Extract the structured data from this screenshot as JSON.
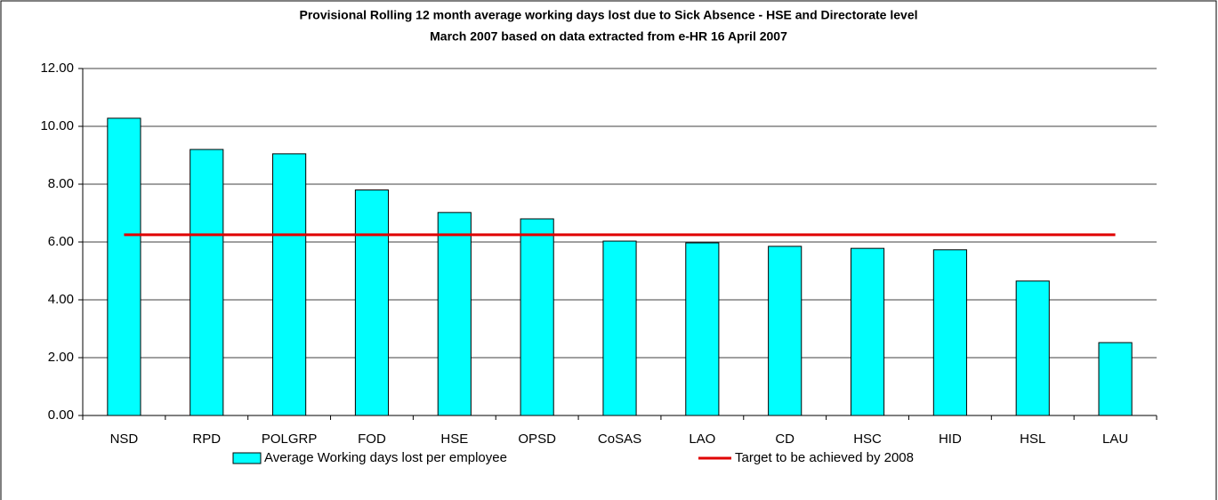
{
  "chart_data": {
    "type": "bar",
    "title": "Provisional Rolling 12 month average working days lost due to Sick Absence - HSE and Directorate level",
    "subtitle": "March 2007 based on data extracted from e-HR 16 April 2007",
    "categories": [
      "NSD",
      "RPD",
      "POLGRP",
      "FOD",
      "HSE",
      "OPSD",
      "CoSAS",
      "LAO",
      "CD",
      "HSC",
      "HID",
      "HSL",
      "LAU"
    ],
    "series": [
      {
        "name": "Average Working days lost per employee",
        "type": "bar",
        "color": "#00ffff",
        "values": [
          10.28,
          9.2,
          9.05,
          7.8,
          7.02,
          6.8,
          6.03,
          5.97,
          5.85,
          5.78,
          5.73,
          4.65,
          2.52
        ]
      },
      {
        "name": "Target to be achieved by 2008",
        "type": "line",
        "color": "#e00000",
        "values": [
          6.25,
          6.25,
          6.25,
          6.25,
          6.25,
          6.25,
          6.25,
          6.25,
          6.25,
          6.25,
          6.25,
          6.25,
          6.25
        ]
      }
    ],
    "ylim": [
      0,
      12
    ],
    "yticks": [
      {
        "value": 0,
        "label": "0.00"
      },
      {
        "value": 2,
        "label": "2.00"
      },
      {
        "value": 4,
        "label": "4.00"
      },
      {
        "value": 6,
        "label": "6.00"
      },
      {
        "value": 8,
        "label": "8.00"
      },
      {
        "value": 10,
        "label": "10.00"
      },
      {
        "value": 12,
        "label": "12.00"
      }
    ],
    "grid": true,
    "legend": "bottom"
  }
}
